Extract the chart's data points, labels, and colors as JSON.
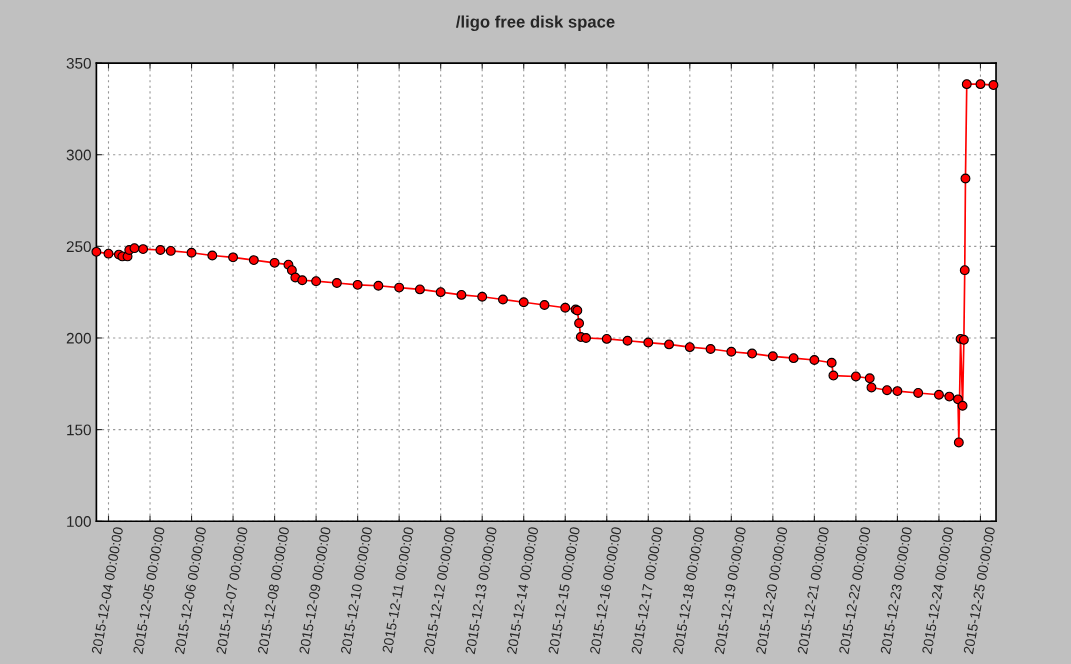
{
  "chart_data": {
    "type": "line",
    "title": "/ligo free disk space",
    "x": [
      "2015-12-03T17:00",
      "2015-12-04T00:00",
      "2015-12-04T06:00",
      "2015-12-04T08:00",
      "2015-12-04T11:00",
      "2015-12-04T12:00",
      "2015-12-04T15:00",
      "2015-12-04T20:00",
      "2015-12-05T06:00",
      "2015-12-05T12:00",
      "2015-12-06T00:00",
      "2015-12-06T12:00",
      "2015-12-07T00:00",
      "2015-12-07T12:00",
      "2015-12-08T00:00",
      "2015-12-08T08:00",
      "2015-12-08T10:00",
      "2015-12-08T12:00",
      "2015-12-08T16:00",
      "2015-12-09T00:00",
      "2015-12-09T12:00",
      "2015-12-10T00:00",
      "2015-12-10T12:00",
      "2015-12-11T00:00",
      "2015-12-11T12:00",
      "2015-12-12T00:00",
      "2015-12-12T12:00",
      "2015-12-13T00:00",
      "2015-12-13T12:00",
      "2015-12-14T00:00",
      "2015-12-14T12:00",
      "2015-12-15T00:00",
      "2015-12-15T06:00",
      "2015-12-15T07:00",
      "2015-12-15T08:00",
      "2015-12-15T09:00",
      "2015-12-15T12:00",
      "2015-12-16T00:00",
      "2015-12-16T12:00",
      "2015-12-17T00:00",
      "2015-12-17T12:00",
      "2015-12-18T00:00",
      "2015-12-18T12:00",
      "2015-12-19T00:00",
      "2015-12-19T12:00",
      "2015-12-20T00:00",
      "2015-12-20T12:00",
      "2015-12-21T00:00",
      "2015-12-21T10:00",
      "2015-12-21T11:00",
      "2015-12-22T00:00",
      "2015-12-22T08:00",
      "2015-12-22T09:00",
      "2015-12-22T18:00",
      "2015-12-23T00:00",
      "2015-12-23T12:00",
      "2015-12-24T00:00",
      "2015-12-24T06:00",
      "2015-12-24T11:00",
      "2015-12-24T11:30",
      "2015-12-24T12:30",
      "2015-12-24T13:40",
      "2015-12-24T14:25",
      "2015-12-24T14:55",
      "2015-12-24T15:20",
      "2015-12-24T16:05",
      "2015-12-25T00:00",
      "2015-12-25T07:30"
    ],
    "series": [
      {
        "color": "#ff0000",
        "values": [
          247,
          246,
          245.5,
          244.5,
          244.5,
          248,
          249,
          248.5,
          248,
          247.5,
          246.5,
          245,
          244,
          242.5,
          241,
          240,
          237,
          233,
          231.5,
          231,
          230,
          229,
          228.5,
          227.5,
          226.5,
          225,
          223.5,
          222.5,
          221,
          219.5,
          218,
          216.5,
          215.5,
          215,
          208,
          200.5,
          200,
          199.5,
          198.5,
          197.5,
          196.5,
          195,
          194,
          192.5,
          191.5,
          190,
          189,
          188,
          186.5,
          179.5,
          179,
          178,
          173,
          171.5,
          171,
          170,
          169,
          168,
          166.5,
          143,
          199.5,
          163,
          199,
          237,
          287,
          338.5,
          338.5,
          338
        ]
      }
    ],
    "xlim": [
      "2015-12-03T17:00",
      "2015-12-25T09:00"
    ],
    "xticks": [
      {
        "value": "2015-12-04",
        "label": "2015-12-04 00:00:00"
      },
      {
        "value": "2015-12-05",
        "label": "2015-12-05 00:00:00"
      },
      {
        "value": "2015-12-06",
        "label": "2015-12-06 00:00:00"
      },
      {
        "value": "2015-12-07",
        "label": "2015-12-07 00:00:00"
      },
      {
        "value": "2015-12-08",
        "label": "2015-12-08 00:00:00"
      },
      {
        "value": "2015-12-09",
        "label": "2015-12-09 00:00:00"
      },
      {
        "value": "2015-12-10",
        "label": "2015-12-10 00:00:00"
      },
      {
        "value": "2015-12-11",
        "label": "2015-12-11 00:00:00"
      },
      {
        "value": "2015-12-12",
        "label": "2015-12-12 00:00:00"
      },
      {
        "value": "2015-12-13",
        "label": "2015-12-13 00:00:00"
      },
      {
        "value": "2015-12-14",
        "label": "2015-12-14 00:00:00"
      },
      {
        "value": "2015-12-15",
        "label": "2015-12-15 00:00:00"
      },
      {
        "value": "2015-12-16",
        "label": "2015-12-16 00:00:00"
      },
      {
        "value": "2015-12-17",
        "label": "2015-12-17 00:00:00"
      },
      {
        "value": "2015-12-18",
        "label": "2015-12-18 00:00:00"
      },
      {
        "value": "2015-12-19",
        "label": "2015-12-19 00:00:00"
      },
      {
        "value": "2015-12-20",
        "label": "2015-12-20 00:00:00"
      },
      {
        "value": "2015-12-21",
        "label": "2015-12-21 00:00:00"
      },
      {
        "value": "2015-12-22",
        "label": "2015-12-22 00:00:00"
      },
      {
        "value": "2015-12-23",
        "label": "2015-12-23 00:00:00"
      },
      {
        "value": "2015-12-24",
        "label": "2015-12-24 00:00:00"
      },
      {
        "value": "2015-12-25",
        "label": "2015-12-25 00:00:00"
      }
    ],
    "ylim": [
      100,
      350
    ],
    "yticks": [
      100,
      150,
      200,
      250,
      300,
      350
    ],
    "grid": true,
    "marker": "circle",
    "line_style": "solid"
  }
}
